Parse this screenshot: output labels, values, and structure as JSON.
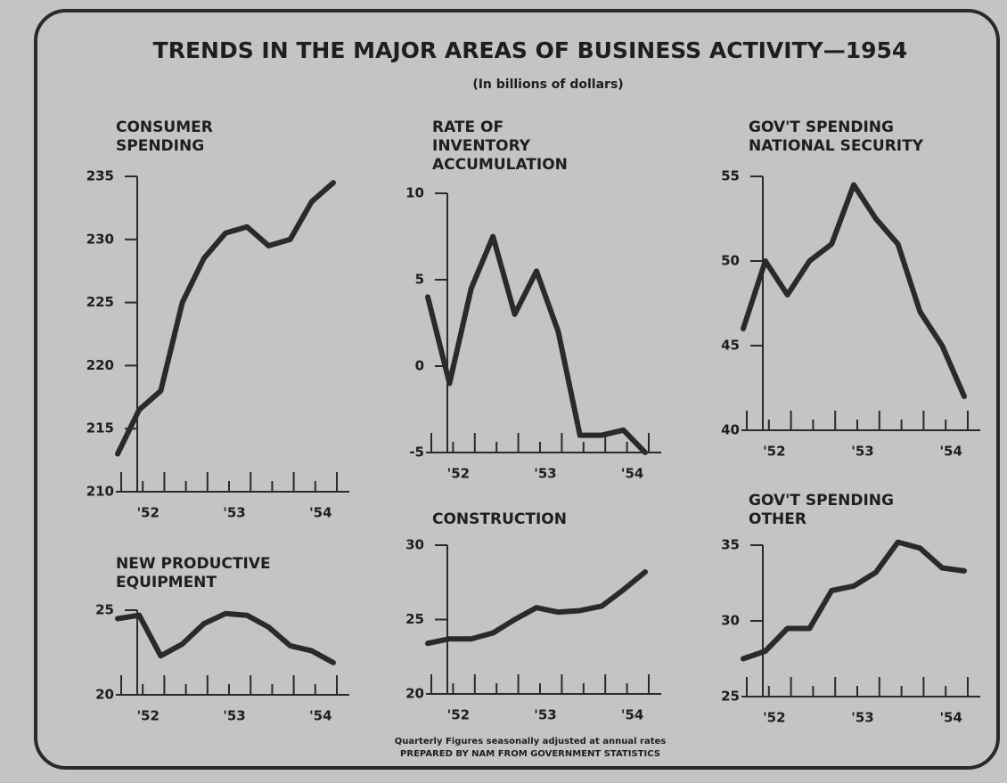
{
  "title": "TRENDS IN THE MAJOR AREAS OF BUSINESS ACTIVITY—1954",
  "subtitle": "(In billions of dollars)",
  "notes": [
    "Quarterly Figures seasonally adjusted at annual rates",
    "PREPARED BY NAM FROM GOVERNMENT STATISTICS"
  ],
  "chart_data": [
    {
      "type": "line",
      "title": [
        "CONSUMER",
        "SPENDING"
      ],
      "color": "#2a2a2a",
      "categories": [
        null,
        "'52",
        null,
        null,
        null,
        "'53",
        null,
        null,
        null,
        "'54",
        null
      ],
      "values": [
        213,
        216.5,
        218,
        225,
        228.5,
        230.5,
        231,
        229.5,
        230,
        233,
        234.5
      ],
      "ylim": [
        210,
        235
      ],
      "yticks": [
        210,
        215,
        220,
        225,
        230,
        235
      ]
    },
    {
      "type": "line",
      "title": [
        "RATE OF",
        "INVENTORY",
        "ACCUMULATION"
      ],
      "color": "#2a2a2a",
      "categories": [
        null,
        "'52",
        null,
        null,
        null,
        "'53",
        null,
        null,
        null,
        "'54",
        null
      ],
      "values": [
        4,
        -1,
        4.5,
        7.5,
        3,
        5.5,
        2,
        -4,
        -4,
        -3.7,
        -5
      ],
      "ylim": [
        -5,
        10
      ],
      "yticks": [
        -5,
        0,
        5,
        10
      ]
    },
    {
      "type": "line",
      "title": [
        "GOV'T SPENDING",
        "NATIONAL SECURITY"
      ],
      "color": "#2a2a2a",
      "categories": [
        null,
        "'52",
        null,
        null,
        null,
        "'53",
        null,
        null,
        null,
        "'54",
        null
      ],
      "values": [
        46,
        50,
        48,
        50,
        51,
        54.5,
        52.5,
        51,
        47,
        45,
        42
      ],
      "ylim": [
        40,
        55
      ],
      "yticks": [
        40,
        45,
        50,
        55
      ]
    },
    {
      "type": "line",
      "title": [
        "NEW PRODUCTIVE",
        "EQUIPMENT"
      ],
      "color": "#2a2a2a",
      "categories": [
        null,
        "'52",
        null,
        null,
        null,
        "'53",
        null,
        null,
        null,
        "'54",
        null
      ],
      "values": [
        24.5,
        24.7,
        22.3,
        23,
        24.2,
        24.8,
        24.7,
        24,
        22.9,
        22.6,
        21.9
      ],
      "ylim": [
        20,
        25
      ],
      "yticks": [
        20,
        25
      ]
    },
    {
      "type": "line",
      "title": [
        "CONSTRUCTION"
      ],
      "color": "#2a2a2a",
      "categories": [
        null,
        "'52",
        null,
        null,
        null,
        "'53",
        null,
        null,
        null,
        "'54",
        null
      ],
      "values": [
        23.4,
        23.7,
        23.7,
        24.1,
        25,
        25.8,
        25.5,
        25.6,
        25.9,
        27,
        28.2
      ],
      "ylim": [
        20,
        30
      ],
      "yticks": [
        20,
        25,
        30
      ]
    },
    {
      "type": "line",
      "title": [
        "GOV'T SPENDING",
        "OTHER"
      ],
      "color": "#2a2a2a",
      "categories": [
        null,
        "'52",
        null,
        null,
        null,
        "'53",
        null,
        null,
        null,
        "'54",
        null
      ],
      "values": [
        27.5,
        28,
        29.5,
        29.5,
        32,
        32.3,
        33.2,
        35.2,
        34.8,
        33.5,
        33.3
      ],
      "ylim": [
        25,
        35
      ],
      "yticks": [
        25,
        30,
        35
      ]
    }
  ]
}
